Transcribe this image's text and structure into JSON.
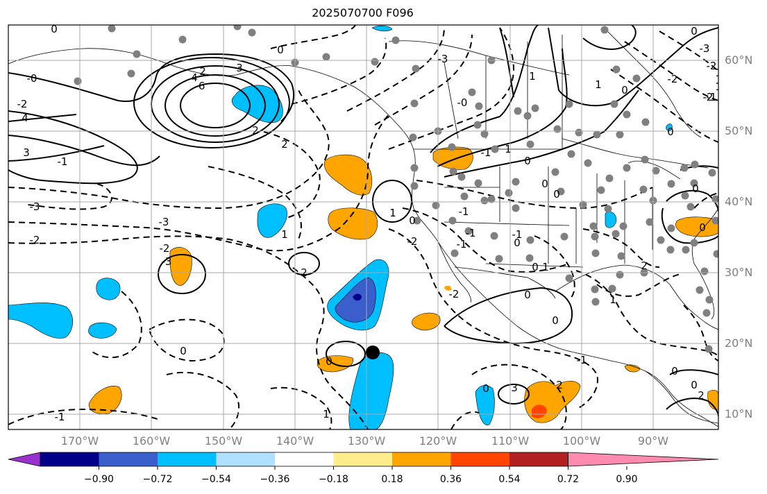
{
  "title": "2025070700 F096",
  "lat_labels": [
    "60°N",
    "50°N",
    "40°N",
    "30°N",
    "20°N",
    "10°N"
  ],
  "lon_labels": [
    "170°W",
    "160°W",
    "150°W",
    "140°W",
    "130°W",
    "120°W",
    "110°W",
    "100°W",
    "90°W"
  ],
  "colorbar": {
    "colors": [
      "#9932cc",
      "#00008b",
      "#3a5fcd",
      "#00bfff",
      "#b0e0ff",
      "#ffffff",
      "#ffec8b",
      "#ffa500",
      "#ff4500",
      "#b22222",
      "#ff8cb0"
    ],
    "tick_labels": [
      "−0.90",
      "−0.72",
      "−0.54",
      "−0.36",
      "−0.18",
      "0.18",
      "0.36",
      "0.54",
      "0.72",
      "0.90"
    ]
  },
  "contour_labels": [
    "0",
    "-2",
    "4",
    "3",
    "2",
    "3",
    "4",
    "-6",
    "2",
    "-1",
    "-0",
    "-3",
    "-2",
    "-3",
    "-2",
    "2",
    "1",
    "0",
    "1",
    "0",
    "2",
    "-3",
    "-2",
    "-1",
    "-2",
    "0",
    "0",
    "-1",
    "0",
    "1",
    "-1",
    "0",
    "0",
    "1",
    "-1",
    "0",
    "3",
    "2",
    "-3",
    "-0",
    "1",
    "0",
    "0",
    "2",
    "1",
    "0",
    "-1",
    "0",
    "-2",
    "-3",
    "1",
    "0",
    "1",
    "0",
    "-1",
    "-1",
    "0",
    "-1",
    "0",
    "0",
    "2",
    "-2",
    "1",
    "1",
    "-2",
    "0",
    "0"
  ],
  "colors": {
    "grid": "#a9a9a9",
    "contour": "#000000",
    "station": "#808080",
    "marker": "#000000",
    "tick_label": "#808080"
  }
}
